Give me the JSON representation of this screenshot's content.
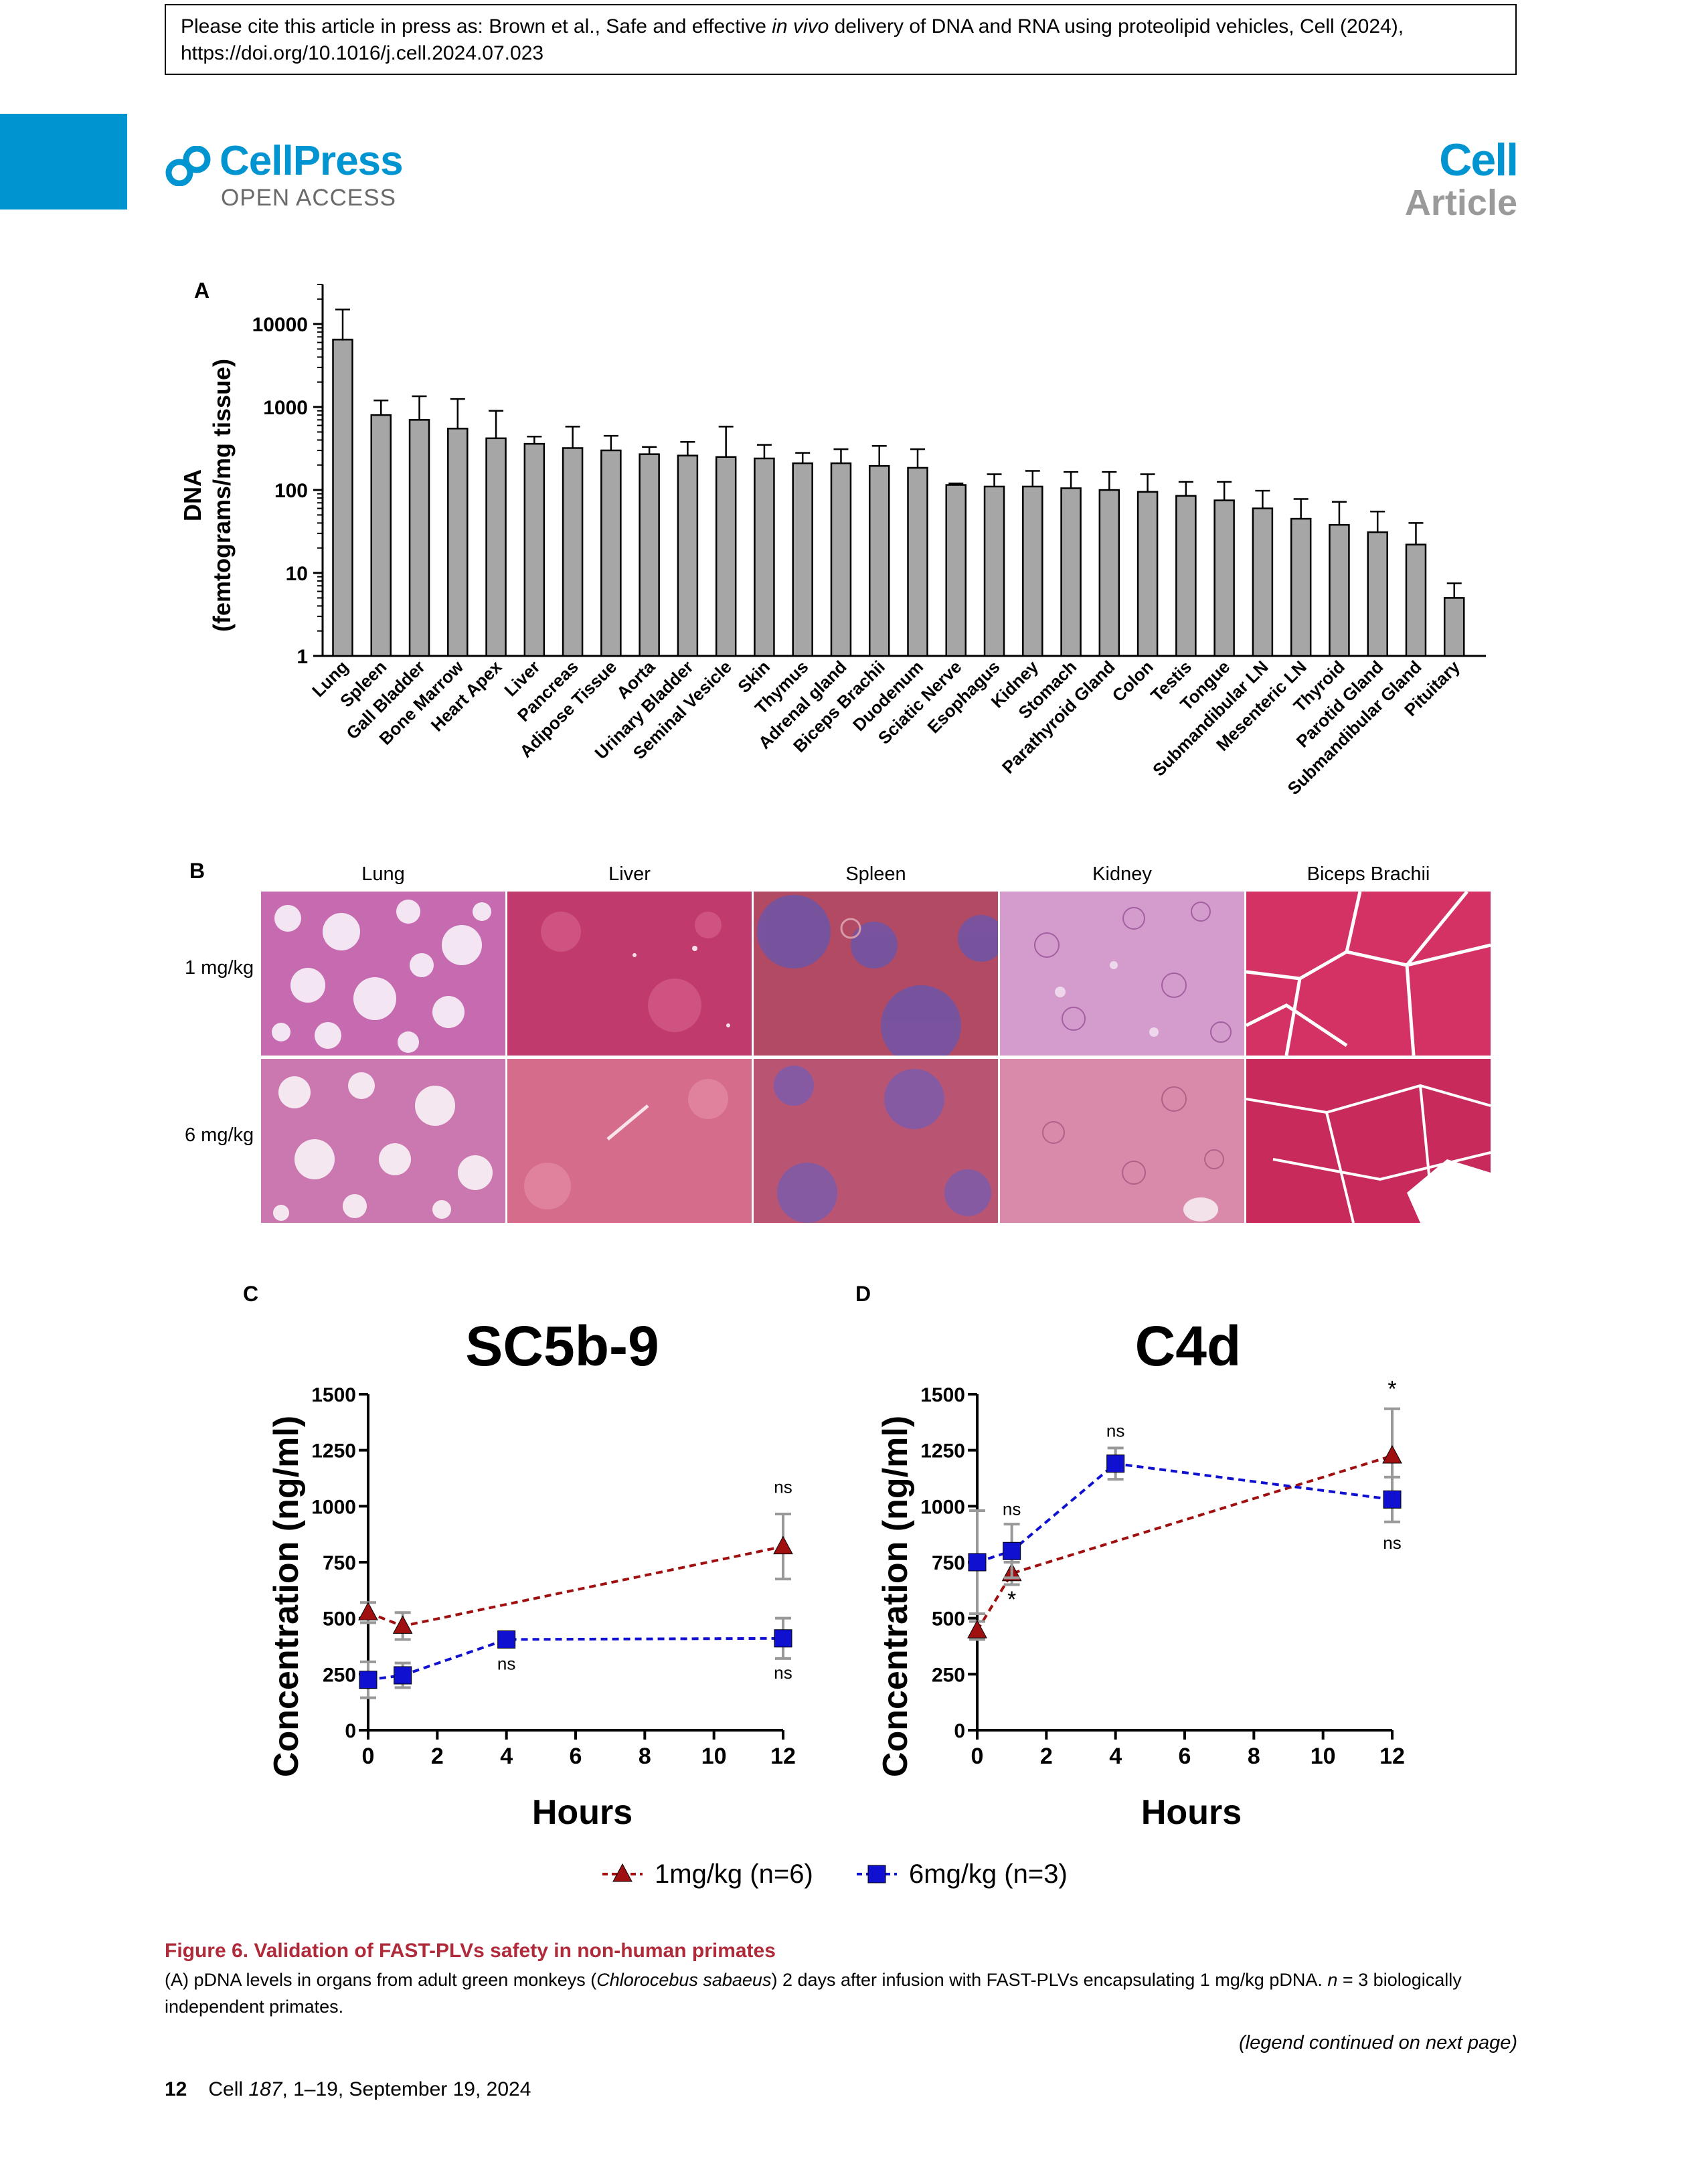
{
  "header": {
    "citation": {
      "prefix": "Please cite this article in press as: Brown et al., Safe and effective ",
      "italic": "in vivo",
      "suffix": " delivery of DNA and RNA using proteolipid vehicles, Cell (2024),",
      "doi": "https://doi.org/10.1016/j.cell.2024.07.023"
    },
    "brand": "CellPress",
    "open_access": "OPEN ACCESS",
    "journal": "Cell",
    "section": "Article"
  },
  "panels": {
    "a": "A",
    "b": "B",
    "c": "C",
    "d": "D"
  },
  "histology": {
    "columns": [
      "Lung",
      "Liver",
      "Spleen",
      "Kidney",
      "Biceps Brachii"
    ],
    "rows": [
      "1 mg/kg",
      "6 mg/kg"
    ]
  },
  "legend": {
    "series1": "1mg/kg (n=6)",
    "series2": "6mg/kg (n=3)"
  },
  "chart_data": [
    {
      "id": "A",
      "type": "bar",
      "ylabel_line1": "DNA",
      "ylabel_line2": "(femtograms/mg tissue)",
      "yscale": "log",
      "ylim": [
        1,
        30000
      ],
      "yticks": [
        "1",
        "10",
        "100",
        "1000",
        "10000"
      ],
      "categories": [
        "Lung",
        "Spleen",
        "Gall Bladder",
        "Bone Marrow",
        "Heart Apex",
        "Liver",
        "Pancreas",
        "Adipose Tissue",
        "Aorta",
        "Urinary Bladder",
        "Seminal Vesicle",
        "Skin",
        "Thymus",
        "Adrenal gland",
        "Biceps Brachii",
        "Duodenum",
        "Sciatic Nerve",
        "Esophagus",
        "Kidney",
        "Stomach",
        "Parathyroid Gland",
        "Colon",
        "Testis",
        "Tongue",
        "Submandibular LN",
        "Mesenteric LN",
        "Thyroid",
        "Parotid Gland",
        "Submandibular Gland",
        "Pituitary"
      ],
      "values": [
        6500,
        800,
        700,
        550,
        420,
        360,
        320,
        300,
        270,
        260,
        250,
        240,
        210,
        210,
        195,
        185,
        115,
        110,
        110,
        105,
        100,
        95,
        85,
        75,
        60,
        45,
        38,
        31,
        22,
        5
      ],
      "errors": [
        15000,
        1200,
        1350,
        1250,
        900,
        440,
        580,
        450,
        330,
        380,
        580,
        350,
        280,
        310,
        340,
        310,
        120,
        155,
        170,
        165,
        165,
        155,
        125,
        125,
        98,
        78,
        72,
        55,
        40,
        7.5
      ]
    },
    {
      "id": "C",
      "type": "line",
      "title": "SC5b-9",
      "xlabel": "Hours",
      "ylabel": "Concentration (ng/ml)",
      "xlim": [
        0,
        12
      ],
      "ylim": [
        0,
        1500
      ],
      "xticks": [
        "0",
        "2",
        "4",
        "6",
        "8",
        "10",
        "12"
      ],
      "yticks": [
        "0",
        "250",
        "500",
        "750",
        "1000",
        "1250",
        "1500"
      ],
      "series": [
        {
          "name": "1mg/kg (n=6)",
          "color": "#a01010",
          "marker": "triangle",
          "points": [
            {
              "x": 0,
              "y": 525,
              "err": 45
            },
            {
              "x": 1,
              "y": 465,
              "err": 60
            },
            {
              "x": 12,
              "y": 820,
              "err": 145
            }
          ]
        },
        {
          "name": "6mg/kg (n=3)",
          "color": "#1010d0",
          "marker": "square",
          "points": [
            {
              "x": 0,
              "y": 225,
              "err": 80
            },
            {
              "x": 1,
              "y": 245,
              "err": 55
            },
            {
              "x": 4,
              "y": 405,
              "err": 10
            },
            {
              "x": 12,
              "y": 410,
              "err": 90
            }
          ]
        }
      ],
      "annotations": [
        {
          "x": 12,
          "y": 1060,
          "text": "ns"
        },
        {
          "x": 4,
          "y": 270,
          "text": "ns"
        },
        {
          "x": 12,
          "y": 230,
          "text": "ns"
        }
      ]
    },
    {
      "id": "D",
      "type": "line",
      "title": "C4d",
      "xlabel": "Hours",
      "ylabel": "Concentration (ng/ml)",
      "xlim": [
        0,
        12
      ],
      "ylim": [
        0,
        1500
      ],
      "xticks": [
        "0",
        "2",
        "4",
        "6",
        "8",
        "10",
        "12"
      ],
      "yticks": [
        "0",
        "250",
        "500",
        "750",
        "1000",
        "1250",
        "1500"
      ],
      "series": [
        {
          "name": "1mg/kg (n=6)",
          "color": "#a01010",
          "marker": "triangle",
          "points": [
            {
              "x": 0,
              "y": 445,
              "err": 40
            },
            {
              "x": 1,
              "y": 700,
              "err": 50
            },
            {
              "x": 12,
              "y": 1225,
              "err": 210
            }
          ]
        },
        {
          "name": "6mg/kg (n=3)",
          "color": "#1010d0",
          "marker": "square",
          "points": [
            {
              "x": 0,
              "y": 750,
              "err": 230
            },
            {
              "x": 1,
              "y": 800,
              "err": 120
            },
            {
              "x": 4,
              "y": 1190,
              "err": 70
            },
            {
              "x": 12,
              "y": 1030,
              "err": 100
            }
          ]
        }
      ],
      "annotations": [
        {
          "x": 1,
          "y": 960,
          "text": "ns"
        },
        {
          "x": 4,
          "y": 1310,
          "text": "ns"
        },
        {
          "x": 1,
          "y": 550,
          "text": "*"
        },
        {
          "x": 12,
          "y": 1490,
          "text": "*"
        },
        {
          "x": 12,
          "y": 810,
          "text": "ns"
        }
      ]
    }
  ],
  "caption": {
    "title": "Figure 6. Validation of FAST-PLVs safety in non-human primates",
    "text_a": "(A) pDNA levels in organs from adult green monkeys (",
    "text_species": "Chlorocebus sabaeus",
    "text_b": ") 2 days after infusion with FAST-PLVs encapsulating 1 mg/kg pDNA. ",
    "text_n": "n",
    "text_c": " = 3 biologically independent primates.",
    "continued": "(legend continued on next page)"
  },
  "footer": {
    "page": "12",
    "journal": "Cell ",
    "volume": "187",
    "rest": ", 1–19, September 19, 2024"
  },
  "colors": {
    "brand_blue": "#0094d0",
    "caption_red": "#b02a3a",
    "bar_gray": "#a6a6a6",
    "series1": "#a01010",
    "series2": "#1010d0"
  }
}
